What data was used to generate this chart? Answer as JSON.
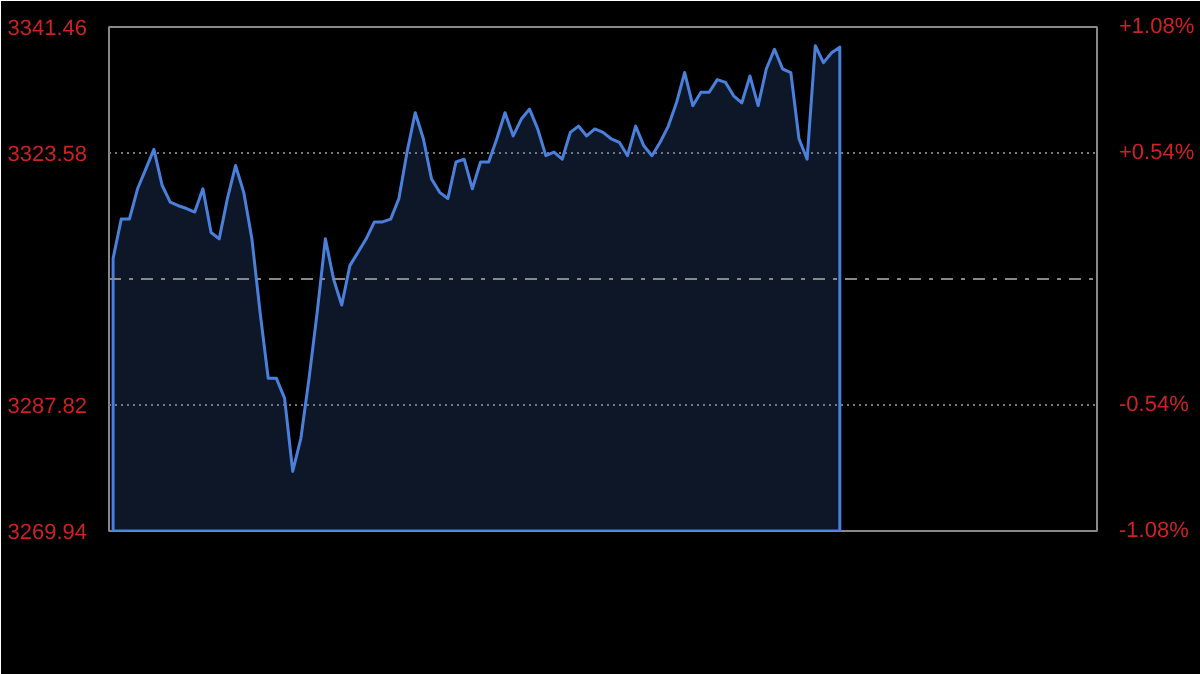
{
  "chart_data": {
    "type": "area",
    "categories": [
      null,
      null,
      null,
      null,
      null,
      null,
      null,
      null,
      null,
      null,
      null,
      null,
      null,
      null,
      null,
      null,
      null,
      null,
      null,
      null,
      null,
      null,
      null,
      null,
      null,
      null,
      null,
      null,
      null,
      null,
      null,
      null,
      null,
      null,
      null,
      null,
      null,
      null,
      null,
      null,
      null,
      null,
      null,
      null,
      null,
      null,
      null,
      null,
      null,
      null,
      null,
      null,
      null,
      null,
      null,
      null,
      null,
      null,
      null,
      null,
      null,
      null,
      null,
      null,
      null,
      null,
      null,
      null,
      null,
      null,
      null,
      null,
      null,
      null,
      null,
      null,
      null,
      null,
      null,
      null,
      null,
      null,
      null,
      null,
      null,
      null,
      null,
      null,
      null,
      null,
      null,
      null,
      null,
      null,
      null,
      null,
      null,
      null,
      null,
      null,
      null,
      null,
      null,
      null,
      null,
      null,
      null,
      null,
      null,
      null,
      null,
      null,
      null,
      null,
      null,
      null,
      null,
      null,
      null,
      null,
      null
    ],
    "series": [
      {
        "color": "#4a80dc",
        "values": [
          3308.6,
          3314.2,
          3314.2,
          3318.5,
          3321.3,
          3324.1,
          3319.0,
          3316.6,
          3316.1,
          3315.7,
          3315.2,
          3318.5,
          3312.3,
          3311.4,
          3317.1,
          3321.8,
          3318.0,
          3311.4,
          3301.0,
          3291.6,
          3291.6,
          3288.8,
          3278.4,
          3283.1,
          3291.6,
          3301.0,
          3311.4,
          3305.7,
          3302.0,
          3307.6,
          3309.5,
          3311.4,
          3313.8,
          3313.8,
          3314.2,
          3317.1,
          3323.7,
          3329.3,
          3325.6,
          3319.9,
          3318.0,
          3317.1,
          3322.3,
          3322.7,
          3318.5,
          3322.3,
          3322.3,
          3325.6,
          3329.3,
          3326.0,
          3328.4,
          3329.8,
          3327.0,
          3323.2,
          3323.7,
          3322.7,
          3326.5,
          3327.4,
          3326.0,
          3327.0,
          3326.5,
          3325.6,
          3325.1,
          3323.2,
          3327.4,
          3324.6,
          3323.2,
          3325.1,
          3327.4,
          3330.7,
          3335.0,
          3330.3,
          3332.2,
          3332.2,
          3334.0,
          3333.6,
          3331.7,
          3330.7,
          3334.5,
          3330.3,
          3335.5,
          3338.3,
          3335.5,
          3335.0,
          3325.6,
          3322.7,
          3338.8,
          3336.4,
          3337.8,
          3338.6,
          null,
          null,
          null,
          null,
          null,
          null,
          null,
          null,
          null,
          null,
          null,
          null,
          null,
          null,
          null,
          null,
          null,
          null,
          null,
          null,
          null,
          null,
          null,
          null,
          null,
          null,
          null,
          null,
          null,
          null,
          null
        ]
      }
    ],
    "ylim": [
      3269.94,
      3341.46
    ],
    "yticks": [
      3269.94,
      3287.82,
      3323.58,
      3341.46
    ],
    "y2lim": [
      -1.08,
      1.08
    ],
    "y2ticks": [
      {
        "value": -1.08,
        "label": "-1.08%"
      },
      {
        "value": -0.54,
        "label": "-0.54%"
      },
      {
        "value": 0.54,
        "label": "+0.54%"
      },
      {
        "value": 1.08,
        "label": "+1.08%"
      }
    ],
    "ref_lines": [
      {
        "axis": "y",
        "value": 3305.7,
        "label": null,
        "color": "#888888",
        "line_style": "dashdot"
      }
    ],
    "grid": "y",
    "tick_labels": "y"
  }
}
